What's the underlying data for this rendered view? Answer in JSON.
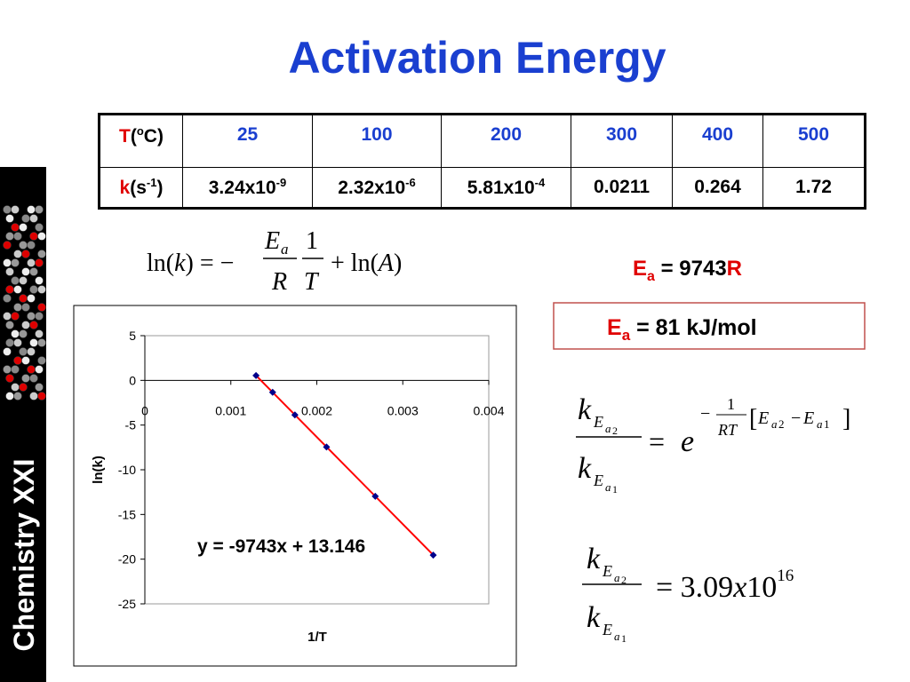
{
  "title": "Activation Energy",
  "sidebar": "Chemistry XXI",
  "table": {
    "rows": [
      {
        "label": {
          "symbol": "T",
          "open": "(",
          "sup": "o",
          "close": "C)"
        },
        "cells": [
          25,
          100,
          200,
          300,
          400,
          500
        ]
      },
      {
        "label": {
          "symbol": "k",
          "open": "(s",
          "sup": "-1",
          "close": ")"
        },
        "cells": [
          {
            "base": "3.24x10",
            "sup": "-9"
          },
          {
            "base": "2.32x10",
            "sup": "-6"
          },
          {
            "base": "5.81x10",
            "sup": "-4"
          },
          0.0211,
          0.264,
          1.72
        ]
      }
    ]
  },
  "equations": {
    "arrhenius": {
      "ln": "ln(",
      "k": "k",
      "mid": ") = −",
      "E": "E",
      "a": "a",
      "R": "R",
      "one": "1",
      "T": "T",
      "plus": "+ ln(",
      "A": "A",
      "close": ")"
    },
    "ratio": {
      "k": "k",
      "E": "E",
      "a": "a",
      "i2": "2",
      "i1": "1",
      "eq": "=",
      "e": "e",
      "minus": "−",
      "one": "1",
      "RT": "RT",
      "lb": "[",
      "rb": "]"
    },
    "result": {
      "eq": "= 3.09",
      "x": "x",
      "pow": "10",
      "exp": "16"
    }
  },
  "ea": {
    "first": {
      "E": "E",
      "a": "a",
      "eq": " = 9743",
      "R": "R"
    },
    "second": {
      "E": "E",
      "a": "a",
      "eq": " = 81 kJ/mol"
    }
  },
  "chart_data": {
    "type": "scatter",
    "x": [
      0.003354,
      0.00268,
      0.002113,
      0.001745,
      0.001486,
      0.001293
    ],
    "values": [
      -19.55,
      -12.97,
      -7.45,
      -3.86,
      -1.33,
      0.54
    ],
    "color": "#00008b",
    "xlim": [
      0,
      0.004
    ],
    "xticks": [
      0,
      0.001,
      0.002,
      0.003,
      0.004
    ],
    "ylim": [
      -25,
      5
    ],
    "yticks": [
      -25,
      -20,
      -15,
      -10,
      -5,
      0,
      5
    ],
    "xlabel": "1/T",
    "ylabel": "ln(k)",
    "trendline": {
      "slope": -9743,
      "intercept": 13.146,
      "label": "y = -9743x + 13.146",
      "color": "#ff0000"
    }
  }
}
